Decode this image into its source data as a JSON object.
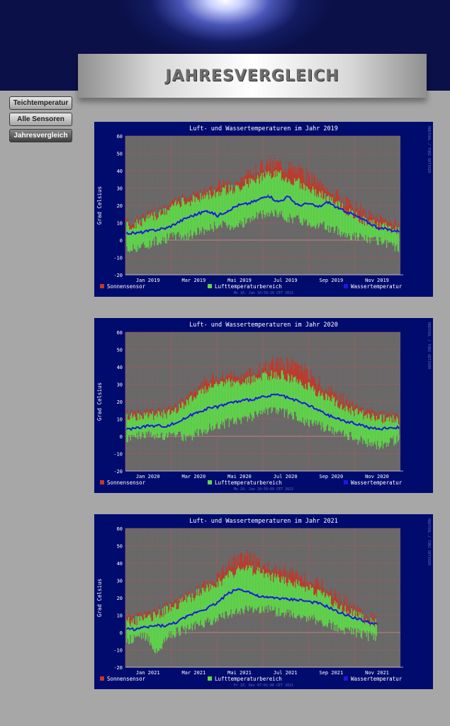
{
  "header": {
    "title": "JAHRESVERGLEICH"
  },
  "nav": {
    "items": [
      {
        "label": "Teichtemperatur",
        "active": false
      },
      {
        "label": "Alle Sensoren",
        "active": false
      },
      {
        "label": "Jahresvergleich",
        "active": true
      }
    ]
  },
  "colors": {
    "page_background": "#a7a7a7",
    "chart_frame": "#000b6e",
    "plot_background": "#696969",
    "sonnensensor": "#c0392b",
    "lufttemperaturbereich": "#5fd64a",
    "wassertemperatur": "#1a1ae0"
  },
  "chart_data": [
    {
      "type": "line",
      "title": "Luft- und Wassertemperaturen im Jahr 2019",
      "ylabel": "Grad Celsius",
      "ylim": [
        -20,
        60
      ],
      "yticks": [
        -20,
        -10,
        0,
        10,
        20,
        30,
        40,
        50,
        60
      ],
      "xticks": [
        "Jan 2019",
        "Mar 2019",
        "Mai 2019",
        "Jul 2019",
        "Sep 2019",
        "Nov 2019"
      ],
      "watermark": "RRDTOOL / TOBI OETIKER",
      "footer": "Mo 10. Jan 10:59:16 CET 2022",
      "grid": true,
      "legend_position": "bottom",
      "series": [
        {
          "name": "Sonnensensor",
          "color": "#c0392b",
          "values": [
            5,
            6,
            8,
            10,
            16,
            20,
            22,
            24,
            27,
            30,
            30,
            33,
            36,
            40,
            43,
            44,
            42,
            40,
            36,
            32,
            28,
            24,
            20,
            17,
            13,
            10,
            8,
            7
          ]
        },
        {
          "name": "Lufttemperaturbereich",
          "color": "#5fd64a",
          "min": [
            -6,
            -4,
            -3,
            0,
            1,
            3,
            2,
            5,
            6,
            9,
            8,
            9,
            11,
            14,
            15,
            15,
            13,
            12,
            10,
            9,
            7,
            5,
            3,
            2,
            0,
            -1,
            -3,
            -4
          ],
          "max": [
            8,
            9,
            12,
            14,
            17,
            21,
            22,
            24,
            26,
            28,
            29,
            30,
            33,
            35,
            37,
            38,
            35,
            33,
            30,
            27,
            24,
            20,
            16,
            13,
            10,
            8,
            7,
            6
          ]
        },
        {
          "name": "Wassertemperatur",
          "color": "#1a1ae0",
          "values": [
            4,
            4,
            5,
            6,
            7,
            10,
            13,
            15,
            17,
            14,
            17,
            20,
            21,
            23,
            26,
            22,
            25,
            20,
            21,
            19,
            22,
            18,
            16,
            13,
            10,
            7,
            6,
            5
          ]
        }
      ]
    },
    {
      "type": "line",
      "title": "Luft- und Wassertemperaturen im Jahr 2020",
      "ylabel": "Grad Celsius",
      "ylim": [
        -20,
        60
      ],
      "yticks": [
        -20,
        -10,
        0,
        10,
        20,
        30,
        40,
        50,
        60
      ],
      "xticks": [
        "Jan 2020",
        "Mar 2020",
        "Mai 2020",
        "Jul 2020",
        "Sep 2020",
        "Nov 2020"
      ],
      "watermark": "RRDTOOL / TOBI OETIKER",
      "footer": "Mo 10. Jan 10:58:09 CET 2022",
      "grid": true,
      "legend_position": "bottom",
      "series": [
        {
          "name": "Sonnensensor",
          "color": "#c0392b",
          "values": [
            8,
            10,
            12,
            11,
            12,
            15,
            20,
            26,
            32,
            33,
            34,
            32,
            35,
            37,
            40,
            43,
            42,
            40,
            36,
            30,
            26,
            22,
            18,
            14,
            12,
            10,
            9,
            8
          ]
        },
        {
          "name": "Lufttemperaturbereich",
          "color": "#5fd64a",
          "min": [
            -1,
            0,
            1,
            0,
            1,
            2,
            -2,
            2,
            4,
            6,
            8,
            9,
            11,
            12,
            14,
            14,
            13,
            11,
            8,
            6,
            4,
            2,
            0,
            -2,
            -4,
            -5,
            -3,
            -2
          ],
          "max": [
            11,
            12,
            13,
            12,
            13,
            15,
            20,
            25,
            28,
            30,
            31,
            30,
            32,
            33,
            35,
            36,
            34,
            32,
            29,
            25,
            22,
            19,
            16,
            13,
            11,
            10,
            10,
            9
          ]
        },
        {
          "name": "Wassertemperatur",
          "color": "#1a1ae0",
          "values": [
            4,
            5,
            6,
            6,
            6,
            8,
            11,
            14,
            16,
            17,
            19,
            20,
            21,
            22,
            23,
            24,
            22,
            20,
            18,
            15,
            12,
            10,
            8,
            7,
            5,
            4,
            5,
            5
          ]
        }
      ]
    },
    {
      "type": "line",
      "title": "Luft- und Wassertemperaturen im Jahr 2021",
      "ylabel": "Grad Celsius",
      "ylim": [
        -20,
        60
      ],
      "yticks": [
        -20,
        -10,
        0,
        10,
        20,
        30,
        40,
        50,
        60
      ],
      "xticks": [
        "Jan 2021",
        "Mar 2021",
        "Mai 2021",
        "Jul 2021",
        "Sep 2021",
        "Nov 2021"
      ],
      "watermark": "RRDTOOL / TOBI OETIKER",
      "footer": "Fr 10. Dez 07:01:06 CET 2021",
      "grid": true,
      "legend_position": "bottom",
      "series": [
        {
          "name": "Sonnensensor",
          "color": "#c0392b",
          "values": [
            5,
            6,
            8,
            9,
            12,
            15,
            18,
            22,
            26,
            30,
            36,
            42,
            44,
            40,
            38,
            36,
            34,
            32,
            30,
            28,
            24,
            20,
            16,
            12,
            8,
            6
          ]
        },
        {
          "name": "Lufttemperaturbereich",
          "color": "#5fd64a",
          "min": [
            -5,
            -3,
            -2,
            -12,
            -3,
            0,
            2,
            4,
            6,
            8,
            10,
            12,
            13,
            14,
            13,
            12,
            11,
            10,
            9,
            7,
            5,
            3,
            1,
            0,
            -2,
            -2
          ],
          "max": [
            6,
            7,
            9,
            10,
            13,
            16,
            19,
            22,
            25,
            28,
            32,
            35,
            37,
            35,
            33,
            31,
            29,
            28,
            26,
            23,
            20,
            16,
            13,
            10,
            7,
            5
          ]
        },
        {
          "name": "Wassertemperatur",
          "color": "#1a1ae0",
          "values": [
            2,
            2,
            3,
            4,
            4,
            6,
            9,
            12,
            14,
            17,
            22,
            25,
            24,
            21,
            20,
            20,
            19,
            19,
            18,
            17,
            15,
            12,
            10,
            8,
            6,
            5
          ]
        }
      ]
    }
  ]
}
